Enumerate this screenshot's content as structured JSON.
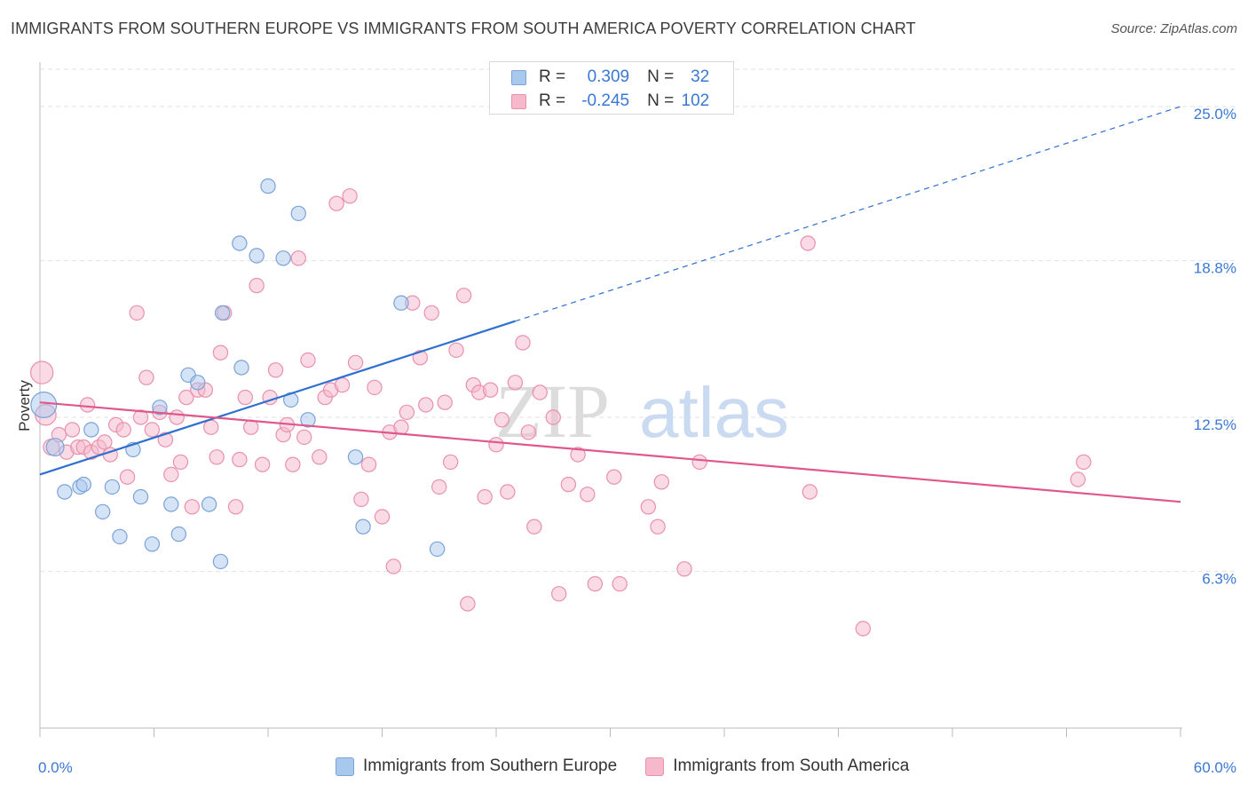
{
  "title": "IMMIGRANTS FROM SOUTHERN EUROPE VS IMMIGRANTS FROM SOUTH AMERICA POVERTY CORRELATION CHART",
  "source": "Source: ZipAtlas.com",
  "watermark": {
    "zip": "ZIP",
    "atlas": "atlas"
  },
  "legend": {
    "rows": [
      {
        "r_label": "R =",
        "r_value": "0.309",
        "n_label": "N =",
        "n_value": "32"
      },
      {
        "r_label": "R =",
        "r_value": "-0.245",
        "n_label": "N =",
        "n_value": "102"
      }
    ]
  },
  "colors": {
    "blue_fill": "#a9c8ee",
    "blue_stroke": "#7aa3d8",
    "blue_line": "#2f6fd0",
    "pink_fill": "#f6b8cb",
    "pink_stroke": "#e991ad",
    "pink_line": "#e0578a",
    "tick_label": "#3a78d4",
    "grid": "#e2e2e2"
  },
  "chart_data": {
    "type": "scatter",
    "ylabel": "Poverty",
    "xlim": [
      0,
      60
    ],
    "ylim": [
      0,
      26.5
    ],
    "y_ticks": [
      {
        "value": 6.3,
        "label": "6.3%"
      },
      {
        "value": 12.5,
        "label": "12.5%"
      },
      {
        "value": 18.8,
        "label": "18.8%"
      },
      {
        "value": 25.0,
        "label": "25.0%"
      }
    ],
    "x_tick_labels": {
      "min": "0.0%",
      "max": "60.0%"
    },
    "series": [
      {
        "name": "Immigrants from Southern Europe",
        "color": "#a9c8ee",
        "points": [
          [
            0.2,
            13.0,
            1.6
          ],
          [
            0.8,
            11.3,
            1.1
          ],
          [
            1.3,
            9.5,
            0.9
          ],
          [
            2.1,
            9.7,
            0.9
          ],
          [
            2.3,
            9.8,
            0.9
          ],
          [
            2.7,
            12.0,
            0.9
          ],
          [
            3.3,
            8.7,
            0.9
          ],
          [
            3.8,
            9.7,
            0.9
          ],
          [
            4.2,
            7.7,
            0.9
          ],
          [
            4.9,
            11.2,
            0.9
          ],
          [
            5.3,
            9.3,
            0.9
          ],
          [
            5.9,
            7.4,
            0.9
          ],
          [
            6.3,
            12.9,
            0.9
          ],
          [
            6.9,
            9.0,
            0.9
          ],
          [
            7.3,
            7.8,
            0.9
          ],
          [
            7.8,
            14.2,
            0.9
          ],
          [
            8.3,
            13.9,
            0.9
          ],
          [
            8.9,
            9.0,
            0.9
          ],
          [
            9.5,
            6.7,
            0.9
          ],
          [
            9.6,
            16.7,
            0.9
          ],
          [
            10.5,
            19.5,
            0.9
          ],
          [
            10.6,
            14.5,
            0.9
          ],
          [
            11.4,
            19.0,
            0.9
          ],
          [
            12.0,
            21.8,
            0.9
          ],
          [
            12.8,
            18.9,
            0.9
          ],
          [
            13.2,
            13.2,
            0.9
          ],
          [
            13.6,
            20.7,
            0.9
          ],
          [
            14.1,
            12.4,
            0.9
          ],
          [
            16.6,
            10.9,
            0.9
          ],
          [
            17.0,
            8.1,
            0.9
          ],
          [
            19.0,
            17.1,
            0.9
          ],
          [
            20.9,
            7.2,
            0.9
          ]
        ]
      },
      {
        "name": "Immigrants from South America",
        "color": "#f6b8cb",
        "points": [
          [
            0.1,
            14.3,
            1.4
          ],
          [
            0.3,
            12.6,
            1.3
          ],
          [
            0.6,
            11.3,
            1.0
          ],
          [
            1.0,
            11.8,
            0.9
          ],
          [
            1.4,
            11.1,
            0.9
          ],
          [
            1.7,
            12.0,
            0.9
          ],
          [
            2.0,
            11.3,
            0.9
          ],
          [
            2.3,
            11.3,
            0.9
          ],
          [
            2.5,
            13.0,
            0.9
          ],
          [
            2.7,
            11.1,
            0.9
          ],
          [
            3.1,
            11.3,
            0.9
          ],
          [
            3.4,
            11.5,
            0.9
          ],
          [
            3.7,
            11.0,
            0.9
          ],
          [
            4.0,
            12.2,
            0.9
          ],
          [
            4.4,
            12.0,
            0.9
          ],
          [
            4.6,
            10.1,
            0.9
          ],
          [
            5.1,
            16.7,
            0.9
          ],
          [
            5.3,
            12.5,
            0.9
          ],
          [
            5.6,
            14.1,
            0.9
          ],
          [
            5.9,
            12.0,
            0.9
          ],
          [
            6.3,
            12.7,
            0.9
          ],
          [
            6.6,
            11.6,
            0.9
          ],
          [
            6.9,
            10.2,
            0.9
          ],
          [
            7.2,
            12.5,
            0.9
          ],
          [
            7.4,
            10.7,
            0.9
          ],
          [
            7.7,
            13.3,
            0.9
          ],
          [
            8.0,
            8.9,
            0.9
          ],
          [
            8.3,
            13.6,
            0.9
          ],
          [
            8.7,
            13.6,
            0.9
          ],
          [
            9.0,
            12.1,
            0.9
          ],
          [
            9.3,
            10.9,
            0.9
          ],
          [
            9.5,
            15.1,
            0.9
          ],
          [
            9.7,
            16.7,
            0.9
          ],
          [
            10.3,
            8.9,
            0.9
          ],
          [
            10.5,
            10.8,
            0.9
          ],
          [
            10.8,
            13.3,
            0.9
          ],
          [
            11.1,
            12.1,
            0.9
          ],
          [
            11.4,
            17.8,
            0.9
          ],
          [
            11.7,
            10.6,
            0.9
          ],
          [
            12.1,
            13.3,
            0.9
          ],
          [
            12.4,
            14.4,
            0.9
          ],
          [
            12.8,
            11.8,
            0.9
          ],
          [
            13.0,
            12.2,
            0.9
          ],
          [
            13.3,
            10.6,
            0.9
          ],
          [
            13.6,
            18.9,
            0.9
          ],
          [
            13.9,
            11.7,
            0.9
          ],
          [
            14.1,
            14.8,
            0.9
          ],
          [
            14.7,
            10.9,
            0.9
          ],
          [
            15.0,
            13.3,
            0.9
          ],
          [
            15.3,
            13.6,
            0.9
          ],
          [
            15.6,
            21.1,
            0.9
          ],
          [
            15.9,
            13.8,
            0.9
          ],
          [
            16.3,
            21.4,
            0.9
          ],
          [
            16.6,
            14.7,
            0.9
          ],
          [
            16.9,
            9.2,
            0.9
          ],
          [
            17.3,
            10.6,
            0.9
          ],
          [
            17.6,
            13.7,
            0.9
          ],
          [
            18.0,
            8.5,
            0.9
          ],
          [
            18.4,
            11.9,
            0.9
          ],
          [
            18.6,
            6.5,
            0.9
          ],
          [
            19.0,
            12.1,
            0.9
          ],
          [
            19.3,
            12.7,
            0.9
          ],
          [
            19.6,
            17.1,
            0.9
          ],
          [
            20.0,
            14.9,
            0.9
          ],
          [
            20.3,
            13.0,
            0.9
          ],
          [
            20.6,
            16.7,
            0.9
          ],
          [
            21.0,
            9.7,
            0.9
          ],
          [
            21.3,
            13.1,
            0.9
          ],
          [
            21.6,
            10.7,
            0.9
          ],
          [
            21.9,
            15.2,
            0.9
          ],
          [
            22.3,
            17.4,
            0.9
          ],
          [
            22.5,
            5.0,
            0.9
          ],
          [
            22.8,
            13.8,
            0.9
          ],
          [
            23.1,
            13.5,
            0.9
          ],
          [
            23.4,
            9.3,
            0.9
          ],
          [
            23.7,
            13.6,
            0.9
          ],
          [
            24.0,
            11.4,
            0.9
          ],
          [
            24.3,
            12.4,
            0.9
          ],
          [
            24.6,
            9.5,
            0.9
          ],
          [
            25.0,
            13.9,
            0.9
          ],
          [
            25.4,
            15.5,
            0.9
          ],
          [
            25.7,
            11.9,
            0.9
          ],
          [
            26.0,
            8.1,
            0.9
          ],
          [
            26.3,
            13.5,
            0.9
          ],
          [
            27.0,
            12.5,
            0.9
          ],
          [
            27.3,
            5.4,
            0.9
          ],
          [
            27.8,
            9.8,
            0.9
          ],
          [
            28.3,
            11.0,
            0.9
          ],
          [
            28.8,
            9.4,
            0.9
          ],
          [
            29.2,
            5.8,
            0.9
          ],
          [
            30.2,
            10.1,
            0.9
          ],
          [
            30.5,
            5.8,
            0.9
          ],
          [
            32.0,
            8.9,
            0.9
          ],
          [
            32.5,
            8.1,
            0.9
          ],
          [
            32.7,
            9.9,
            0.9
          ],
          [
            33.9,
            6.4,
            0.9
          ],
          [
            34.7,
            10.7,
            0.9
          ],
          [
            40.4,
            19.5,
            0.9
          ],
          [
            40.5,
            9.5,
            0.9
          ],
          [
            43.3,
            4.0,
            0.9
          ],
          [
            54.6,
            10.0,
            0.9
          ],
          [
            54.9,
            10.7,
            0.9
          ]
        ]
      }
    ],
    "trendlines": [
      {
        "series": "Immigrants from Southern Europe",
        "x_start": 0,
        "y_start": 10.2,
        "x_solid_end": 25,
        "x_end": 60,
        "y_end": 25.0
      },
      {
        "series": "Immigrants from South America",
        "x_start": 0,
        "y_start": 13.1,
        "x_end": 60,
        "y_end": 9.1
      }
    ],
    "grid": true,
    "legend_position": "top-center"
  }
}
